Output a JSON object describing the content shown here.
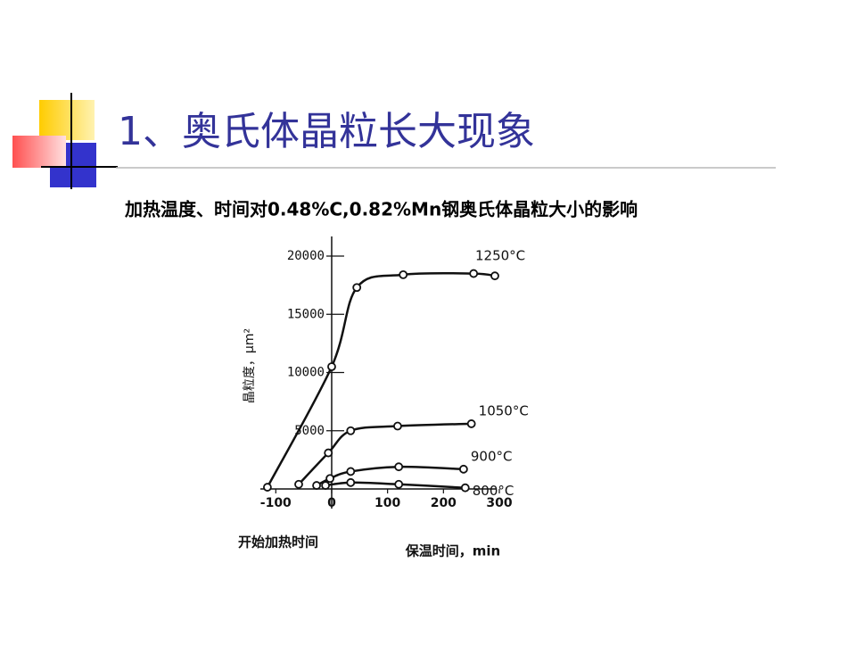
{
  "slide": {
    "title": "1、奥氏体晶粒长大现象",
    "subtitle": "加热温度、时间对0.48%C,0.82%Mn钢奥氏体晶粒大小的影响"
  },
  "chart_data": {
    "type": "line",
    "y_label": "晶粒度，μm²",
    "x_label": "保温时间，min",
    "annotation": "开始加热时间",
    "xlim": [
      -130,
      300
    ],
    "ylim": [
      0,
      20000
    ],
    "xticks": [
      -100,
      0,
      100,
      200,
      300
    ],
    "yticks": [
      5000,
      10000,
      15000,
      20000
    ],
    "color": "#111111",
    "series": [
      {
        "name": "1250°C",
        "x": [
          -115,
          0,
          45,
          128,
          254,
          292
        ],
        "values": [
          150,
          10500,
          17300,
          18400,
          18500,
          18300
        ]
      },
      {
        "name": "1050°C",
        "x": [
          -59,
          -6,
          34,
          118,
          250
        ],
        "values": [
          400,
          3100,
          5000,
          5400,
          5600
        ]
      },
      {
        "name": "900°C",
        "x": [
          -27,
          -3,
          34,
          120,
          236
        ],
        "values": [
          300,
          900,
          1500,
          1900,
          1700
        ]
      },
      {
        "name": "800°C",
        "x": [
          -11,
          34,
          120,
          239
        ],
        "values": [
          300,
          550,
          400,
          100
        ]
      }
    ]
  }
}
